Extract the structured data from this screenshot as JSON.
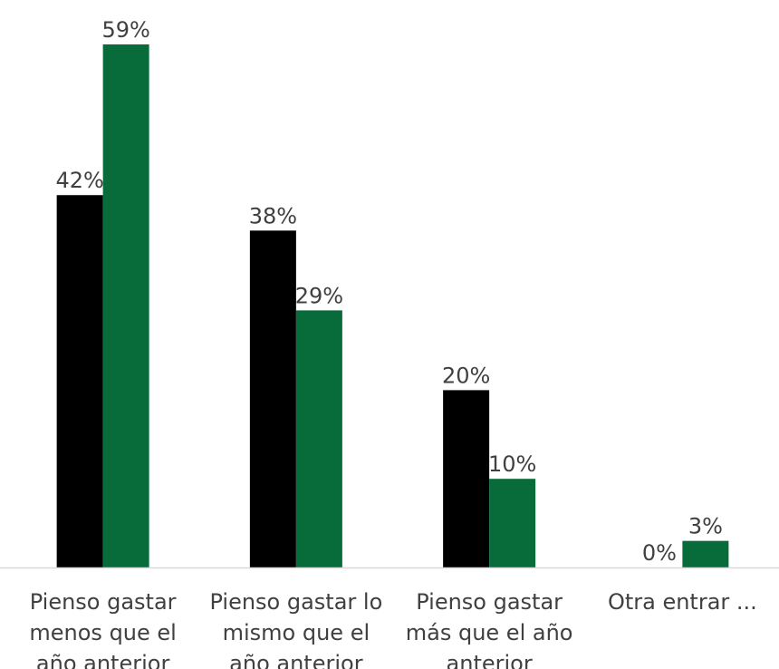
{
  "chart_data": {
    "type": "bar",
    "categories": [
      [
        "Pienso gastar",
        "menos que el",
        "año anterior"
      ],
      [
        "Pienso gastar lo",
        "mismo que el",
        "año anterior"
      ],
      [
        "Pienso gastar",
        "más que el año",
        "anterior"
      ],
      [
        "Otra entrar ..."
      ]
    ],
    "series": [
      {
        "color": "#000000",
        "values": [
          42,
          38,
          20,
          0
        ],
        "labels": [
          "42%",
          "38%",
          "20%",
          "0%"
        ]
      },
      {
        "color": "#076B3A",
        "values": [
          59,
          29,
          10,
          3
        ],
        "labels": [
          "59%",
          "29%",
          "10%",
          "3%"
        ]
      }
    ],
    "ylim": [
      0,
      60
    ],
    "grid": false,
    "legend": false,
    "axis_color": "#d9d9d9"
  }
}
